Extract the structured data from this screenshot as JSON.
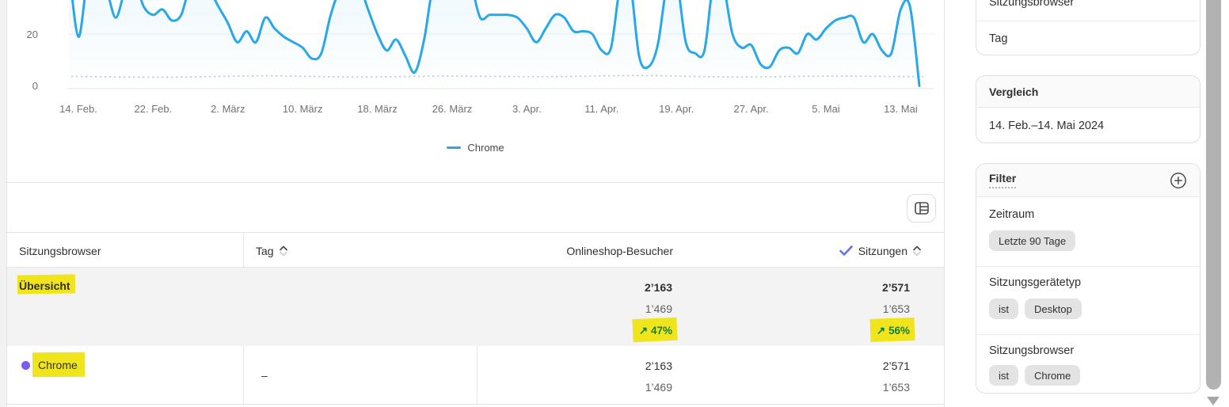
{
  "chart_data": {
    "type": "line",
    "title": "",
    "legend": [
      "Chrome"
    ],
    "x_ticks": [
      "14. Feb.",
      "22. Feb.",
      "2. März",
      "10. März",
      "18. März",
      "26. März",
      "3. Apr.",
      "11. Apr.",
      "19. Apr.",
      "27. Apr.",
      "5. Mai",
      "13. Mai"
    ],
    "y_ticks": [
      "20",
      "0"
    ],
    "ylim_visible": [
      0,
      32.5
    ],
    "grid": "horizontal",
    "estimated": true,
    "lead_in_value": 44,
    "series": [
      {
        "name": "Chrome",
        "color": "#29A8E8",
        "values": [
          19,
          40,
          38,
          36,
          26,
          36,
          39,
          30,
          27,
          29,
          25,
          27,
          38,
          37,
          36,
          30,
          24,
          17,
          21,
          17,
          26,
          22,
          19,
          17,
          15,
          11,
          13,
          27,
          36,
          35,
          38,
          29,
          20,
          14,
          18,
          12,
          6,
          18,
          38,
          36,
          35,
          40,
          38,
          26,
          27,
          27,
          27,
          26,
          22,
          17,
          22,
          27,
          26,
          21,
          21,
          20,
          14,
          15,
          38,
          40,
          12,
          8,
          16,
          38,
          40,
          17,
          13,
          14,
          40,
          38,
          20,
          15,
          16,
          9,
          8,
          14,
          15,
          13,
          20,
          18,
          22,
          25,
          26,
          26,
          17,
          20,
          14,
          13,
          29,
          30,
          1
        ]
      }
    ],
    "comparison": {
      "style": "dotted",
      "approx_values": [
        4.5,
        4.2,
        4.7,
        4.3,
        4.6,
        4.4,
        4.8,
        4.3,
        4.6,
        4.4
      ]
    }
  },
  "table": {
    "columns": [
      "Sitzungsbrowser",
      "Tag",
      "Onlineshop-Besucher",
      "Sitzungen"
    ],
    "sorted_by": "Sitzungen",
    "rows": [
      {
        "label": "Übersicht",
        "besucher_current": "2’163",
        "besucher_previous": "1’469",
        "besucher_change": "↗ 47%",
        "sitzungen_current": "2’571",
        "sitzungen_previous": "1’653",
        "sitzungen_change": "↗ 56%"
      },
      {
        "label": "Chrome",
        "tag": "–",
        "besucher_current": "2’163",
        "besucher_previous": "1’469",
        "sitzungen_current": "2’571",
        "sitzungen_previous": "1’653"
      }
    ]
  },
  "sidebar": {
    "dimensions": {
      "items": [
        "Sitzungsbrowser",
        "Tag"
      ]
    },
    "vergleich": {
      "title": "Vergleich",
      "value": "14. Feb.–14. Mai 2024"
    },
    "filter": {
      "title": "Filter",
      "groups": [
        {
          "label": "Zeitraum",
          "pills": [
            "Letzte 90 Tage"
          ]
        },
        {
          "label": "Sitzungsgerätetyp",
          "pills": [
            "ist",
            "Desktop"
          ]
        },
        {
          "label": "Sitzungsbrowser",
          "pills": [
            "ist",
            "Chrome"
          ]
        }
      ]
    }
  },
  "colors": {
    "line_blue": "#29A8E8",
    "highlight_yellow": "#F0E41C",
    "positive_green": "#108043",
    "chrome_dot_purple": "#7C5BF0"
  }
}
